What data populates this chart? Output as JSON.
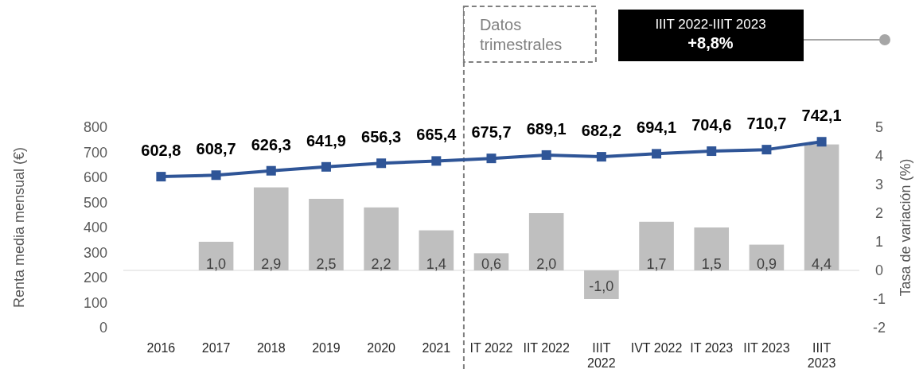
{
  "chart_data": {
    "type": "bar",
    "categories": [
      "2016",
      "2017",
      "2018",
      "2019",
      "2020",
      "2021",
      "IT 2022",
      "IIT 2022",
      "IIIT 2022",
      "IVT 2022",
      "IT 2023",
      "IIT 2023",
      "IIIT 2023"
    ],
    "ylabel": "Renta media mensual (€)",
    "y2label": "Tasa de variación (%)",
    "ylim": [
      0,
      800
    ],
    "yticks": [
      0,
      100,
      200,
      300,
      400,
      500,
      600,
      700,
      800
    ],
    "y2lim": [
      -2,
      5
    ],
    "y2ticks": [
      -2,
      -1,
      0,
      1,
      2,
      3,
      4,
      5
    ],
    "series": [
      {
        "axis": "y2",
        "color": "#bfbfbf",
        "values": [
          null,
          1.0,
          2.9,
          2.5,
          2.2,
          1.4,
          0.6,
          2.0,
          -1.0,
          1.7,
          1.5,
          0.9,
          4.4
        ],
        "value_labels": [
          null,
          "1,0",
          "2,9",
          "2,5",
          "2,2",
          "1,4",
          "0,6",
          "2,0",
          "-1,0",
          "1,7",
          "1,5",
          "0,9",
          "4,4"
        ]
      },
      {
        "type": "line",
        "color": "#2f5597",
        "marker": "square",
        "values": [
          602.8,
          608.7,
          626.3,
          641.9,
          656.3,
          665.4,
          675.7,
          689.1,
          682.2,
          694.1,
          704.6,
          710.7,
          742.1
        ],
        "value_labels": [
          "602,8",
          "608,7",
          "626,3",
          "641,9",
          "656,3",
          "665,4",
          "675,7",
          "689,1",
          "682,2",
          "694,1",
          "704,6",
          "710,7",
          "742,1"
        ]
      }
    ],
    "ref_lines": [
      {
        "axis": "x",
        "value": "IT 2022",
        "label": "Datos trimestrales",
        "line_style": "dashed",
        "color": "#808080"
      }
    ],
    "annotations": [
      "IIIT 2022-IIIT 2023",
      "+8,8%"
    ],
    "grid": false
  }
}
